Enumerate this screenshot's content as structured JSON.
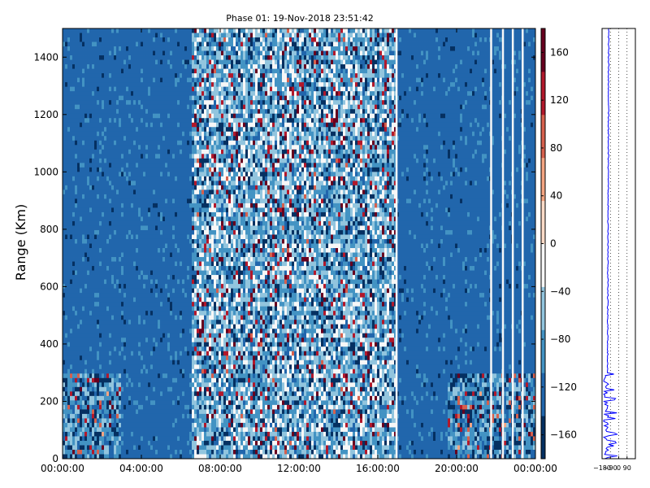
{
  "title": "Phase 01: 19-Nov-2018 23:51:42",
  "chart_data": [
    {
      "type": "heatmap",
      "title": "Phase 01: 19-Nov-2018 23:51:42",
      "xlabel": "",
      "ylabel": "Range (Km)",
      "x_ticks": [
        "00:00:00",
        "04:00:00",
        "08:00:00",
        "12:00:00",
        "16:00:00",
        "20:00:00",
        "00:00:00"
      ],
      "x_range_hours": [
        0,
        24
      ],
      "y_ticks": [
        0,
        200,
        400,
        600,
        800,
        1000,
        1200,
        1400
      ],
      "ylim": [
        0,
        1500
      ],
      "colorbar": {
        "ticks": [
          160,
          120,
          80,
          40,
          0,
          -40,
          -80,
          -120,
          -160
        ],
        "range": [
          -180,
          180
        ],
        "colormap": "RdBu_r",
        "colors": [
          "#053061",
          "#2166ac",
          "#4393c3",
          "#92c5de",
          "#f7f7f7",
          "#fddbc7",
          "#f4a582",
          "#d6604d",
          "#b2182b",
          "#67001f"
        ]
      },
      "features": {
        "noisy_hours": [
          6.5,
          17
        ],
        "white_gap_hours": [
          16.9,
          21.7,
          22.3,
          22.8,
          23.3
        ],
        "low_range_noise_km": 300
      },
      "grid": false
    },
    {
      "type": "line",
      "title": "",
      "xlabel": "",
      "ylabel": "",
      "x_ticks": [
        "−180",
        "−90",
        "0",
        "90"
      ],
      "xlim": [
        -180,
        180
      ],
      "ylim": [
        0,
        1500
      ],
      "series_color": "#0000ff",
      "grid": "vertical-dotted",
      "profile_summary": {
        "low_range_extent_km": 300,
        "high_range_value": -120
      }
    }
  ]
}
